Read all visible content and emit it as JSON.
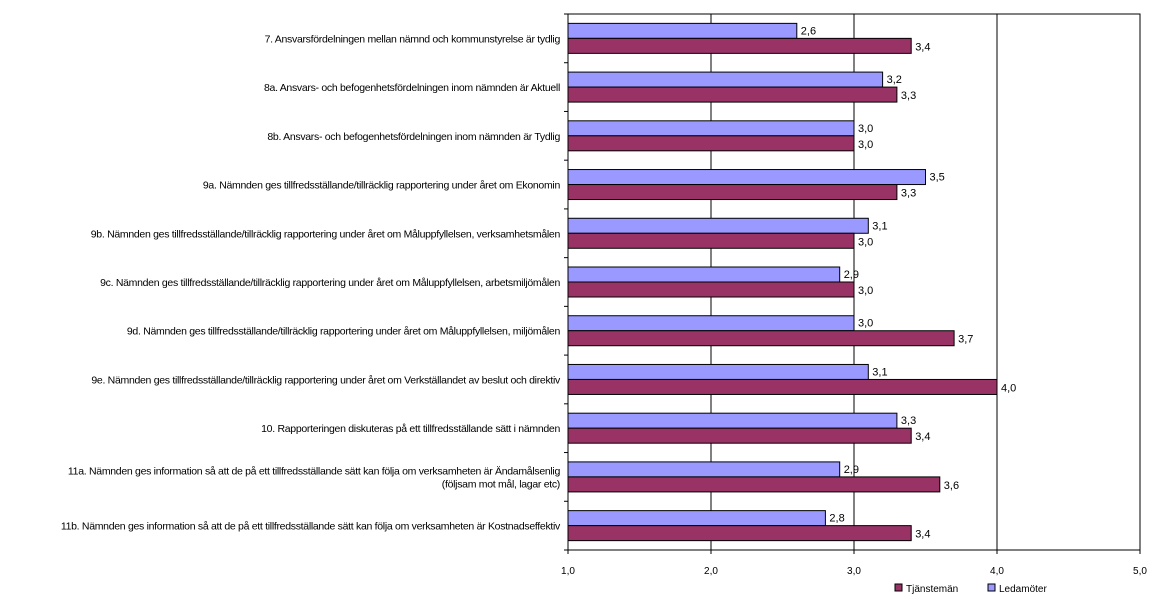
{
  "chart_data": {
    "type": "bar",
    "orientation": "horizontal",
    "categories": [
      "7. Ansvarsfördelningen mellan nämnd och kommunstyrelse är tydlig",
      "8a. Ansvars- och befogenhetsfördelningen inom nämnden är Aktuell",
      "8b. Ansvars- och befogenhetsfördelningen inom nämnden är Tydlig",
      "9a. Nämnden ges tillfredsställande/tillräcklig rapportering under året om Ekonomin",
      "9b. Nämnden ges tillfredsställande/tillräcklig rapportering under året om Måluppfyllelsen, verksamhetsmålen",
      "9c. Nämnden ges tillfredsställande/tillräcklig rapportering under året om Måluppfyllelsen, arbetsmiljömålen",
      "9d. Nämnden ges tillfredsställande/tillräcklig rapportering under året om Måluppfyllelsen, miljömålen",
      "9e. Nämnden ges tillfredsställande/tillräcklig rapportering under året om Verkställandet av beslut och direktiv",
      "10. Rapporteringen diskuteras på ett tillfredsställande sätt i nämnden",
      [
        "11a. Nämnden ges information så att de på ett tillfredsställande sätt kan följa om verksamheten är Ändamålsenlig",
        "(följsam mot mål, lagar etc)"
      ],
      "11b. Nämnden ges information så att de på ett tillfredsställande sätt kan följa om verksamheten är Kostnadseffektiv"
    ],
    "series": [
      {
        "name": "Ledamöter",
        "color": "#9999ff",
        "values": [
          2.6,
          3.2,
          3.0,
          3.5,
          3.1,
          2.9,
          3.0,
          3.1,
          3.3,
          2.9,
          2.8
        ],
        "labels": [
          "2,6",
          "3,2",
          "3,0",
          "3,5",
          "3,1",
          "2,9",
          "3,0",
          "3,1",
          "3,3",
          "2,9",
          "2,8"
        ]
      },
      {
        "name": "Tjänstemän",
        "color": "#993366",
        "values": [
          3.4,
          3.3,
          3.0,
          3.3,
          3.0,
          3.0,
          3.7,
          4.0,
          3.4,
          3.6,
          3.4
        ],
        "labels": [
          "3,4",
          "3,3",
          "3,0",
          "3,3",
          "3,0",
          "3,0",
          "3,7",
          "4,0",
          "3,4",
          "3,6",
          "3,4"
        ]
      }
    ],
    "xlim": [
      1.0,
      5.0
    ],
    "xticks": [
      1.0,
      2.0,
      3.0,
      4.0,
      5.0
    ],
    "xtick_labels": [
      "1,0",
      "2,0",
      "3,0",
      "4,0",
      "5,0"
    ],
    "legend": {
      "placement": "bottom-right",
      "order": [
        "Tjänstemän",
        "Ledamöter"
      ]
    },
    "gridlines": "vertical-major",
    "title": "",
    "xlabel": "",
    "ylabel": ""
  }
}
